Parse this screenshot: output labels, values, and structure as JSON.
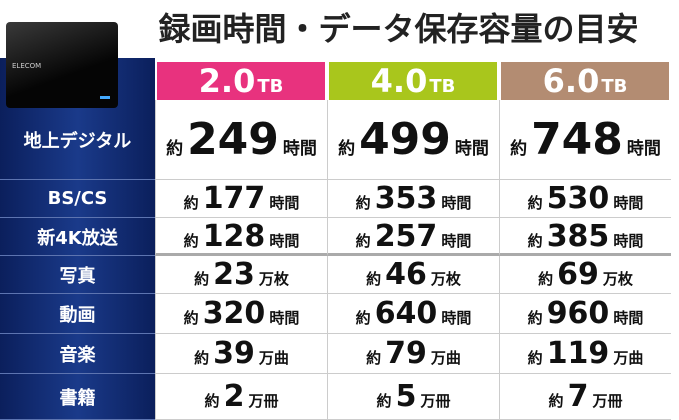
{
  "header": {
    "title": "録画時間・データ保存容量の目安",
    "device_label": "ELECOM"
  },
  "table": {
    "columns": [
      {
        "capacity": "2.0",
        "unit": "TB",
        "color": "#e8327e"
      },
      {
        "capacity": "4.0",
        "unit": "TB",
        "color": "#a9c61c"
      },
      {
        "capacity": "6.0",
        "unit": "TB",
        "color": "#b38c72"
      }
    ],
    "rows": [
      {
        "label": "地上デジタル",
        "cells": [
          {
            "prefix": "約",
            "value": 249,
            "unit": "時間"
          },
          {
            "prefix": "約",
            "value": 499,
            "unit": "時間"
          },
          {
            "prefix": "約",
            "value": 748,
            "unit": "時間"
          }
        ]
      },
      {
        "label": "BS/CS",
        "cells": [
          {
            "prefix": "約",
            "value": 177,
            "unit": "時間"
          },
          {
            "prefix": "約",
            "value": 353,
            "unit": "時間"
          },
          {
            "prefix": "約",
            "value": 530,
            "unit": "時間"
          }
        ]
      },
      {
        "label": "新4K放送",
        "cells": [
          {
            "prefix": "約",
            "value": 128,
            "unit": "時間"
          },
          {
            "prefix": "約",
            "value": 257,
            "unit": "時間"
          },
          {
            "prefix": "約",
            "value": 385,
            "unit": "時間"
          }
        ]
      },
      {
        "label": "写真",
        "cells": [
          {
            "prefix": "約",
            "value": 23,
            "unit": "万枚"
          },
          {
            "prefix": "約",
            "value": 46,
            "unit": "万枚"
          },
          {
            "prefix": "約",
            "value": 69,
            "unit": "万枚"
          }
        ]
      },
      {
        "label": "動画",
        "cells": [
          {
            "prefix": "約",
            "value": 320,
            "unit": "時間"
          },
          {
            "prefix": "約",
            "value": 640,
            "unit": "時間"
          },
          {
            "prefix": "約",
            "value": 960,
            "unit": "時間"
          }
        ]
      },
      {
        "label": "音楽",
        "cells": [
          {
            "prefix": "約",
            "value": 39,
            "unit": "万曲"
          },
          {
            "prefix": "約",
            "value": 79,
            "unit": "万曲"
          },
          {
            "prefix": "約",
            "value": 119,
            "unit": "万曲"
          }
        ]
      },
      {
        "label": "書籍",
        "cells": [
          {
            "prefix": "約",
            "value": 2,
            "unit": "万冊"
          },
          {
            "prefix": "約",
            "value": 5,
            "unit": "万冊"
          },
          {
            "prefix": "約",
            "value": 7,
            "unit": "万冊"
          }
        ]
      }
    ]
  }
}
